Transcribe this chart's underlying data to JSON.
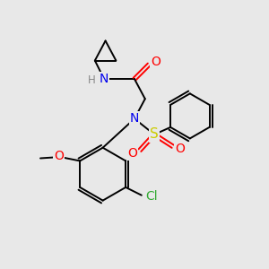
{
  "bg_color": "#e8e8e8",
  "atom_colors": {
    "N": "#0000ee",
    "O": "#ff0000",
    "S": "#cccc00",
    "Cl": "#33aa33",
    "H": "#888888",
    "C": "#000000"
  },
  "bond_color": "#000000",
  "font_size": 10,
  "small_font_size": 8.5
}
